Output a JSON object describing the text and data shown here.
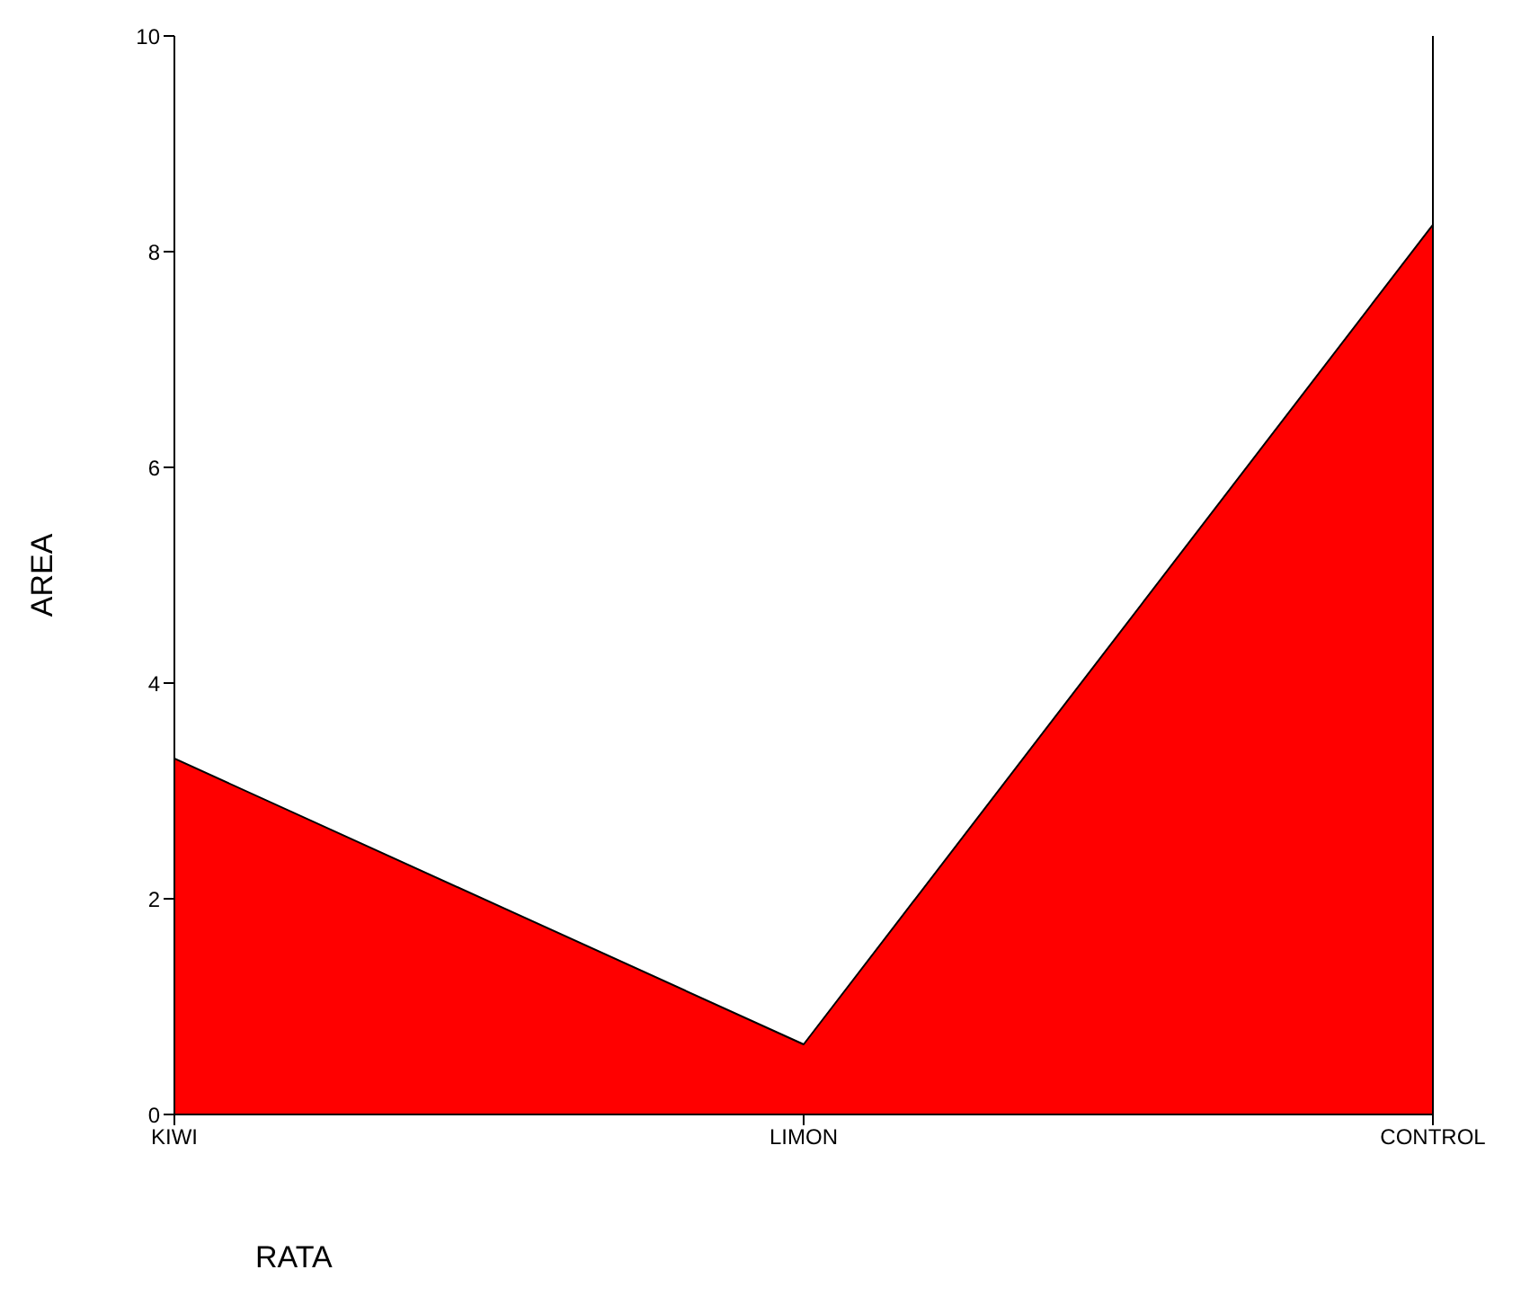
{
  "chart_data": {
    "type": "area",
    "xlabel": "RATA",
    "ylabel": "AREA",
    "categories": [
      "KIWI",
      "LIMON",
      "CONTROL"
    ],
    "series": [
      {
        "color": "#ff0000",
        "values": [
          3.3,
          0.65,
          8.25
        ]
      }
    ],
    "ylim": [
      0,
      10
    ],
    "yticks": [
      0,
      2,
      4,
      6,
      8,
      10
    ],
    "grid": false,
    "legend": false
  }
}
